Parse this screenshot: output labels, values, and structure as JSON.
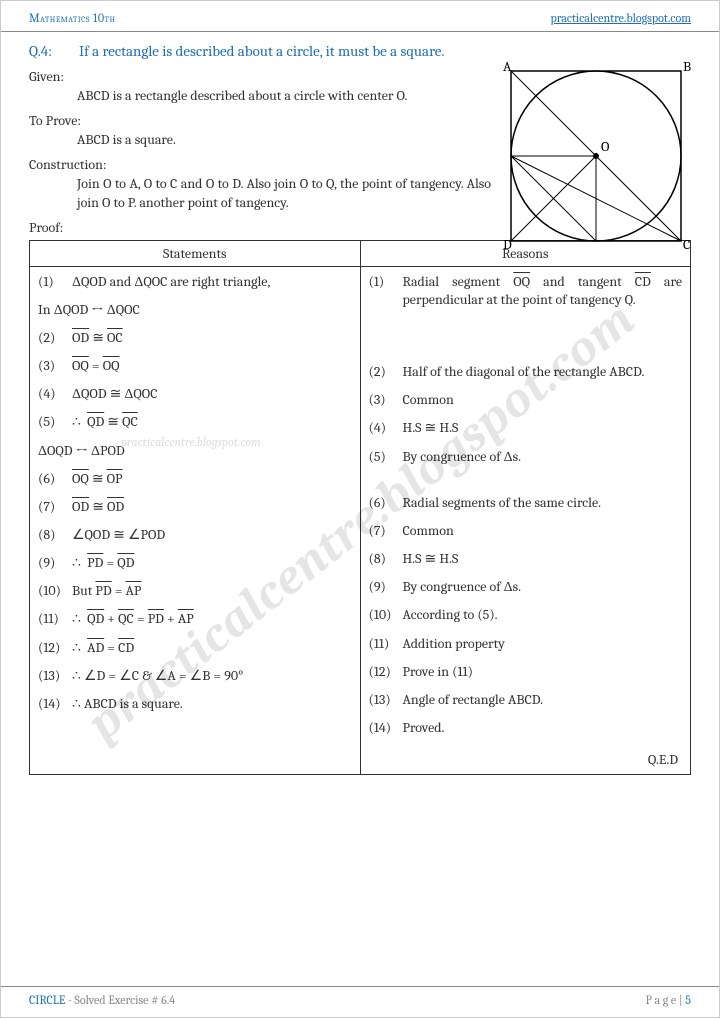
{
  "header": {
    "left": "Mathematics 10th",
    "right": "practicalcentre.blogspot.com"
  },
  "question": {
    "number": "Q.4:",
    "text": "If a rectangle is described about a circle, it must be a square."
  },
  "given": {
    "label": "Given:",
    "text": "ABCD is a rectangle described about a circle with center O."
  },
  "toprove": {
    "label": "To Prove:",
    "text": "ABCD is a square."
  },
  "construction": {
    "label": "Construction:",
    "text": "Join O to A, O to C and O to D. Also join O to Q, the point of tangency. Also join O to P. another point of tangency."
  },
  "proof_label": "Proof:",
  "table_headers": {
    "statements": "Statements",
    "reasons": "Reasons"
  },
  "statements": [
    {
      "n": "(1)",
      "t": "ΔQOD and ΔQOC are right triangle,"
    },
    {
      "full": "In ΔQOD ↔ ΔQOC"
    },
    {
      "n": "(2)",
      "html": "<span class='ov'>OD</span> ≅ <span class='ov'>OC</span>"
    },
    {
      "n": "(3)",
      "html": "<span class='ov'>OQ</span> = <span class='ov'>OQ</span>"
    },
    {
      "n": "(4)",
      "t": "ΔQOD ≅ ΔQOC"
    },
    {
      "n": "(5)",
      "html": "∴&nbsp;&nbsp;<span class='ov'>QD</span> ≅ <span class='ov'>QC</span>"
    },
    {
      "full": "ΔOQD ↔ ΔPOD"
    },
    {
      "n": "(6)",
      "html": "<span class='ov'>OQ</span> ≅ <span class='ov'>OP</span>"
    },
    {
      "n": "(7)",
      "html": "<span class='ov'>OD</span> ≅ <span class='ov'>OD</span>"
    },
    {
      "n": "(8)",
      "t": "∠QOD ≅ ∠POD"
    },
    {
      "n": "(9)",
      "html": "∴&nbsp;&nbsp;<span class='ov'>PD</span> = <span class='ov'>QD</span>"
    },
    {
      "n": "(10)",
      "html": "But <span class='ov'>PD</span> = <span class='ov'>AP</span>"
    },
    {
      "n": "(11)",
      "html": "∴&nbsp;&nbsp;<span class='ov'>QD</span> + <span class='ov'>QC</span> = <span class='ov'>PD</span> + <span class='ov'>AP</span>"
    },
    {
      "n": "(12)",
      "html": "∴&nbsp;&nbsp;<span class='ov'>AD</span> = <span class='ov'>CD</span>"
    },
    {
      "n": "(13)",
      "t": "∴  ∠D = ∠C & ∠A = ∠B = 90°"
    },
    {
      "n": "(14)",
      "t": "∴  ABCD is a square."
    }
  ],
  "reasons": [
    {
      "n": "(1)",
      "html": "Radial segment <span class='ov'>OQ</span> and tangent <span class='ov'>CD</span> are perpendicular at the point of tangency Q."
    },
    {
      "n": "(2)",
      "t": "Half of the diagonal of the rectangle ABCD.",
      "mt": 54
    },
    {
      "n": "(3)",
      "t": "Common"
    },
    {
      "n": "(4)",
      "t": "H.S ≅ H.S"
    },
    {
      "n": "(5)",
      "t": "By congruence of Δs."
    },
    {
      "n": "(6)",
      "t": "Radial segments of the same circle.",
      "mt": 28
    },
    {
      "n": "(7)",
      "t": "Common"
    },
    {
      "n": "(8)",
      "t": "H.S ≅ H.S"
    },
    {
      "n": "(9)",
      "t": "By congruence of Δs."
    },
    {
      "n": "(10)",
      "t": "According to (5)."
    },
    {
      "n": "(11)",
      "t": "Addition property"
    },
    {
      "n": "(12)",
      "t": "Prove in (11)"
    },
    {
      "n": "(13)",
      "t": "Angle of rectangle ABCD."
    },
    {
      "n": "(14)",
      "t": "Proved."
    }
  ],
  "qed": "Q.E.D",
  "watermark_small": "practicalcentre.blogspot.com",
  "watermark_big": "practicalcentre.blogspot.com",
  "footer": {
    "chapter": "CIRCLE",
    "sub": " - Solved Exercise # 6.4",
    "page_label": "P a g e  | ",
    "page_num": "5"
  },
  "diagram": {
    "labels": {
      "A": "A",
      "B": "B",
      "C": "C",
      "D": "D",
      "O": "O"
    },
    "stroke": "#000000",
    "square_size": 170,
    "circle_r": 85
  }
}
